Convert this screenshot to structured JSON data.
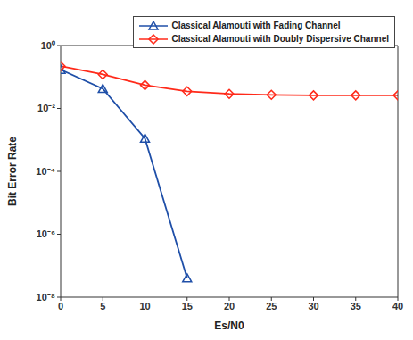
{
  "chart_data": {
    "type": "line",
    "x": [
      0,
      5,
      10,
      15,
      20,
      25,
      30,
      35,
      40
    ],
    "series": [
      {
        "name": "Classical Alamouti with Fading Channel",
        "color": "#1f4fa8",
        "marker": "triangle",
        "values": [
          0.17,
          0.042,
          0.0011,
          4e-08,
          null,
          null,
          null,
          null,
          null
        ]
      },
      {
        "name": "Classical Alamouti with Doubly Dispersive Channel",
        "color": "#ff2a1a",
        "marker": "diamond",
        "values": [
          0.22,
          0.12,
          0.055,
          0.035,
          0.029,
          0.027,
          0.026,
          0.026,
          0.026
        ]
      }
    ],
    "xlabel": "Es/N0",
    "ylabel": "Bit Error Rate",
    "xlim": [
      0,
      40
    ],
    "xticks": [
      0,
      5,
      10,
      15,
      20,
      25,
      30,
      35,
      40
    ],
    "ylim": [
      1e-08,
      1
    ],
    "yticks": [
      {
        "value": 1e-08,
        "label": "10⁻⁸"
      },
      {
        "value": 1e-06,
        "label": "10⁻⁶"
      },
      {
        "value": 0.0001,
        "label": "10⁻⁴"
      },
      {
        "value": 0.01,
        "label": "10⁻²"
      },
      {
        "value": 1,
        "label": "10⁰"
      }
    ],
    "log": "y",
    "legend": "upper right",
    "grid": false
  }
}
